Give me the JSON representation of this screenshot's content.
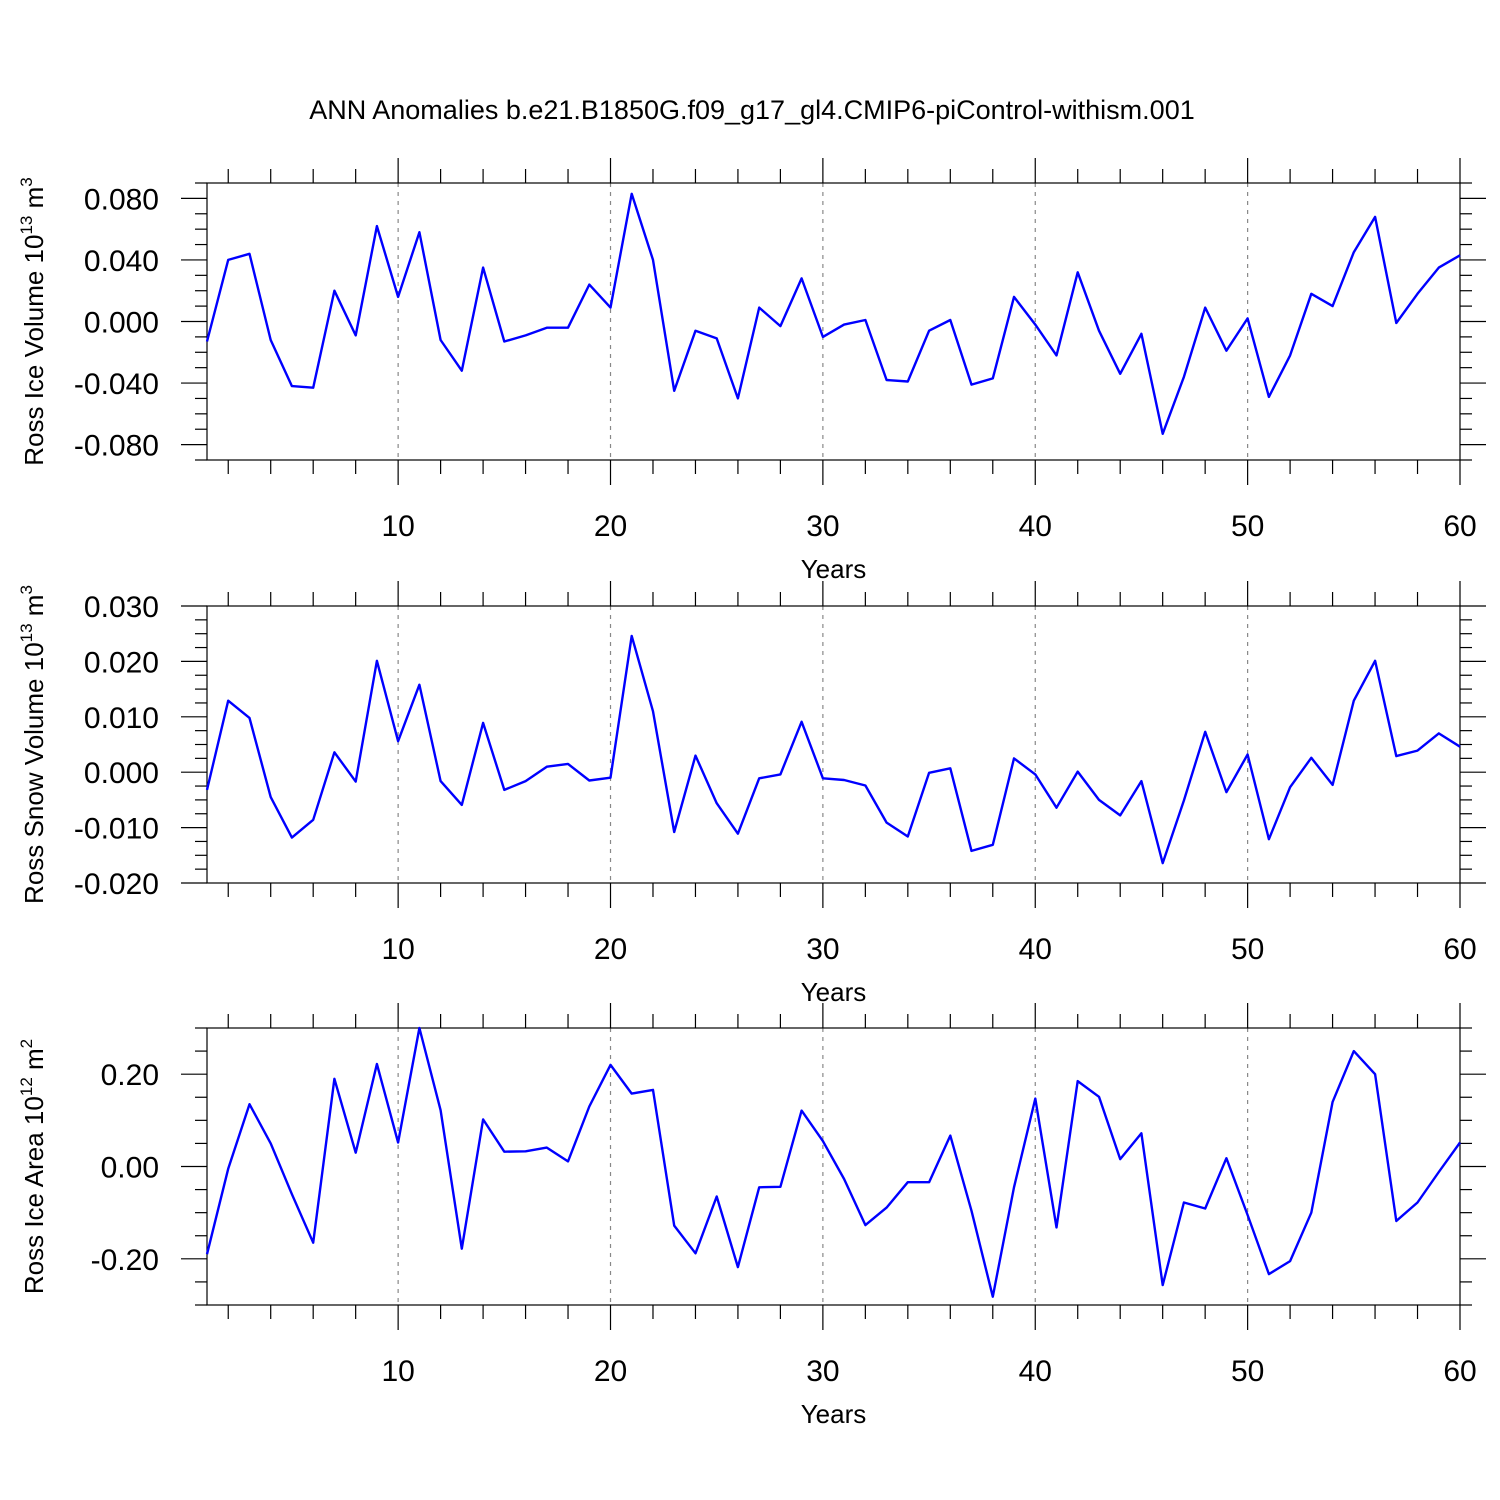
{
  "title": "ANN Anomalies b.e21.B1850G.f09_g17_gl4.CMIP6-piControl-withism.001",
  "colors": {
    "series": "#0000ff",
    "grid": "#888888",
    "axis": "#000000"
  },
  "chart_data": [
    {
      "type": "line",
      "name": "ross-ice-volume",
      "ylabel": "Ross Ice Volume 10",
      "ylabel_sup": "13",
      "ylabel_units": " m",
      "ylabel_units_sup": "3",
      "xlabel": "Years",
      "xlim": [
        1,
        60
      ],
      "ylim": [
        -0.09,
        0.09
      ],
      "xticks": [
        10,
        20,
        30,
        40,
        50,
        60
      ],
      "xtick_labels": [
        "10",
        "20",
        "30",
        "40",
        "50",
        "60"
      ],
      "yticks": [
        0.08,
        0.04,
        0.0,
        -0.04,
        -0.08
      ],
      "ytick_labels": [
        "0.080",
        "0.040",
        "0.000",
        "-0.040",
        "-0.080"
      ],
      "grid_x": [
        10,
        20,
        30,
        40,
        50
      ],
      "x": [
        1,
        2,
        3,
        4,
        5,
        6,
        7,
        8,
        9,
        10,
        11,
        12,
        13,
        14,
        15,
        16,
        17,
        18,
        19,
        20,
        21,
        22,
        23,
        24,
        25,
        26,
        27,
        28,
        29,
        30,
        31,
        32,
        33,
        34,
        35,
        36,
        37,
        38,
        39,
        40,
        41,
        42,
        43,
        44,
        45,
        46,
        47,
        48,
        49,
        50,
        51,
        52,
        53,
        54,
        55,
        56,
        57,
        58,
        59,
        60
      ],
      "values": [
        -0.013,
        0.04,
        0.044,
        -0.012,
        -0.042,
        -0.043,
        0.02,
        -0.009,
        0.062,
        0.016,
        0.058,
        -0.012,
        -0.032,
        0.035,
        -0.013,
        -0.009,
        -0.004,
        -0.004,
        0.024,
        0.009,
        0.083,
        0.04,
        -0.045,
        -0.006,
        -0.011,
        -0.05,
        0.009,
        -0.003,
        0.028,
        -0.01,
        -0.002,
        0.001,
        -0.038,
        -0.039,
        -0.006,
        0.001,
        -0.041,
        -0.037,
        0.016,
        -0.002,
        -0.022,
        0.032,
        -0.006,
        -0.034,
        -0.008,
        -0.073,
        -0.036,
        0.009,
        -0.019,
        0.002,
        -0.049,
        -0.022,
        0.018,
        0.01,
        0.045,
        0.068,
        -0.001,
        0.018,
        0.035,
        0.043
      ]
    },
    {
      "type": "line",
      "name": "ross-snow-volume",
      "ylabel": "Ross Snow Volume 10",
      "ylabel_sup": "13",
      "ylabel_units": " m",
      "ylabel_units_sup": "3",
      "xlabel": "Years",
      "xlim": [
        1,
        60
      ],
      "ylim": [
        -0.02,
        0.03
      ],
      "xticks": [
        10,
        20,
        30,
        40,
        50,
        60
      ],
      "xtick_labels": [
        "10",
        "20",
        "30",
        "40",
        "50",
        "60"
      ],
      "yticks": [
        0.03,
        0.02,
        0.01,
        0.0,
        -0.01,
        -0.02
      ],
      "ytick_labels": [
        "0.030",
        "0.020",
        "0.010",
        "0.000",
        "-0.010",
        "-0.020"
      ],
      "grid_x": [
        10,
        20,
        30,
        40,
        50
      ],
      "x": [
        1,
        2,
        3,
        4,
        5,
        6,
        7,
        8,
        9,
        10,
        11,
        12,
        13,
        14,
        15,
        16,
        17,
        18,
        19,
        20,
        21,
        22,
        23,
        24,
        25,
        26,
        27,
        28,
        29,
        30,
        31,
        32,
        33,
        34,
        35,
        36,
        37,
        38,
        39,
        40,
        41,
        42,
        43,
        44,
        45,
        46,
        47,
        48,
        49,
        50,
        51,
        52,
        53,
        54,
        55,
        56,
        57,
        58,
        59,
        60
      ],
      "values": [
        -0.0032,
        0.0129,
        0.0098,
        -0.0045,
        -0.0118,
        -0.0086,
        0.0036,
        -0.0017,
        0.0201,
        0.0056,
        0.0158,
        -0.0016,
        -0.0059,
        0.0089,
        -0.0032,
        -0.0016,
        0.001,
        0.0015,
        -0.0015,
        -0.001,
        0.0246,
        0.011,
        -0.0108,
        0.003,
        -0.0056,
        -0.0111,
        -0.0011,
        -0.0004,
        0.0091,
        -0.0011,
        -0.0014,
        -0.0024,
        -0.0091,
        -0.0116,
        -0.0001,
        0.0007,
        -0.0142,
        -0.0131,
        0.0025,
        -0.0004,
        -0.0064,
        0.0001,
        -0.005,
        -0.0078,
        -0.0016,
        -0.0164,
        -0.0051,
        0.0073,
        -0.0036,
        0.0032,
        -0.0121,
        -0.0027,
        0.0026,
        -0.0023,
        0.0129,
        0.0201,
        0.0029,
        0.0039,
        0.007,
        0.0046
      ]
    },
    {
      "type": "line",
      "name": "ross-ice-area",
      "ylabel": "Ross Ice Area 10",
      "ylabel_sup": "12",
      "ylabel_units": " m",
      "ylabel_units_sup": "2",
      "xlabel": "Years",
      "xlim": [
        1,
        60
      ],
      "ylim": [
        -0.3,
        0.3
      ],
      "xticks": [
        10,
        20,
        30,
        40,
        50,
        60
      ],
      "xtick_labels": [
        "10",
        "20",
        "30",
        "40",
        "50",
        "60"
      ],
      "yticks": [
        0.2,
        0.0,
        -0.2
      ],
      "ytick_labels": [
        "0.20",
        "0.00",
        "-0.20"
      ],
      "grid_x": [
        10,
        20,
        30,
        40,
        50
      ],
      "x": [
        1,
        2,
        3,
        4,
        5,
        6,
        7,
        8,
        9,
        10,
        11,
        12,
        13,
        14,
        15,
        16,
        17,
        18,
        19,
        20,
        21,
        22,
        23,
        24,
        25,
        26,
        27,
        28,
        29,
        30,
        31,
        32,
        33,
        34,
        35,
        36,
        37,
        38,
        39,
        40,
        41,
        42,
        43,
        44,
        45,
        46,
        47,
        48,
        49,
        50,
        51,
        52,
        53,
        54,
        55,
        56,
        57,
        58,
        59,
        60
      ],
      "values": [
        -0.19,
        -0.005,
        0.135,
        0.05,
        -0.06,
        -0.165,
        0.19,
        0.03,
        0.222,
        0.052,
        0.3,
        0.122,
        -0.178,
        0.102,
        0.032,
        0.033,
        0.041,
        0.011,
        0.13,
        0.22,
        0.158,
        0.166,
        -0.128,
        -0.188,
        -0.065,
        -0.218,
        -0.045,
        -0.044,
        0.121,
        0.055,
        -0.027,
        -0.127,
        -0.089,
        -0.034,
        -0.034,
        0.067,
        -0.096,
        -0.282,
        -0.045,
        0.147,
        -0.132,
        0.185,
        0.151,
        0.016,
        0.072,
        -0.257,
        -0.078,
        -0.091,
        0.018,
        -0.105,
        -0.233,
        -0.205,
        -0.1,
        0.14,
        0.25,
        0.2,
        -0.118,
        -0.078,
        -0.012,
        0.052
      ]
    }
  ]
}
